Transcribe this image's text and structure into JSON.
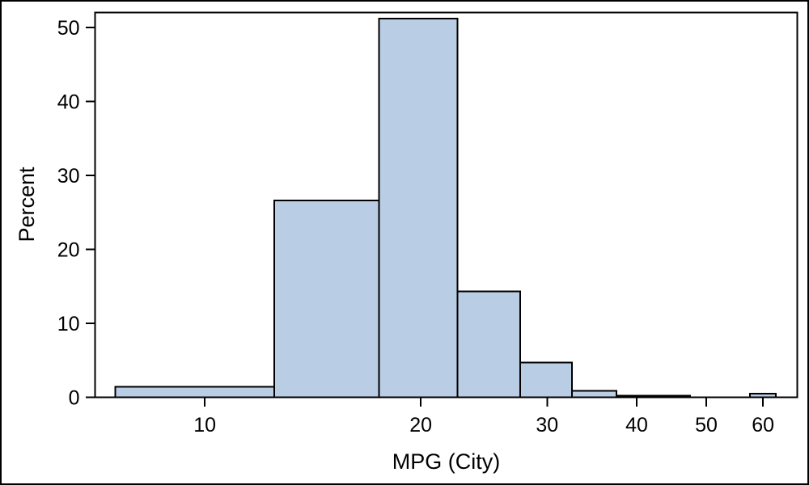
{
  "window": {
    "background": "#ffffff",
    "border_color": "#000000"
  },
  "chart_data": {
    "type": "bar",
    "subtype": "histogram",
    "xlabel": "MPG (City)",
    "ylabel": "Percent",
    "x_scale": "log10",
    "xlim": [
      7.03,
      66.97
    ],
    "ylim": [
      0,
      52
    ],
    "x_ticks": [
      10,
      20,
      30,
      40,
      50,
      60
    ],
    "y_ticks": [
      0,
      10,
      20,
      30,
      40,
      50
    ],
    "grid": false,
    "legend": "none",
    "bin_width": 5,
    "bins": [
      {
        "midpoint": 10,
        "left": 7.5,
        "right": 12.5,
        "percent": 1.4
      },
      {
        "midpoint": 15,
        "left": 12.5,
        "right": 17.5,
        "percent": 26.6
      },
      {
        "midpoint": 20,
        "left": 17.5,
        "right": 22.5,
        "percent": 51.2
      },
      {
        "midpoint": 25,
        "left": 22.5,
        "right": 27.5,
        "percent": 14.3
      },
      {
        "midpoint": 30,
        "left": 27.5,
        "right": 32.5,
        "percent": 4.7
      },
      {
        "midpoint": 35,
        "left": 32.5,
        "right": 37.5,
        "percent": 0.9
      },
      {
        "midpoint": 40,
        "left": 37.5,
        "right": 42.5,
        "percent": 0.2
      },
      {
        "midpoint": 45,
        "left": 42.5,
        "right": 47.5,
        "percent": 0.2
      },
      {
        "midpoint": 50,
        "left": 47.5,
        "right": 52.5,
        "percent": 0.0
      },
      {
        "midpoint": 55,
        "left": 52.5,
        "right": 57.5,
        "percent": 0.0
      },
      {
        "midpoint": 60,
        "left": 57.5,
        "right": 62.5,
        "percent": 0.5
      }
    ],
    "colors": {
      "bar_fill": "#b9cde4",
      "bar_stroke": "#000000",
      "axis": "#000000",
      "text": "#000000"
    }
  }
}
